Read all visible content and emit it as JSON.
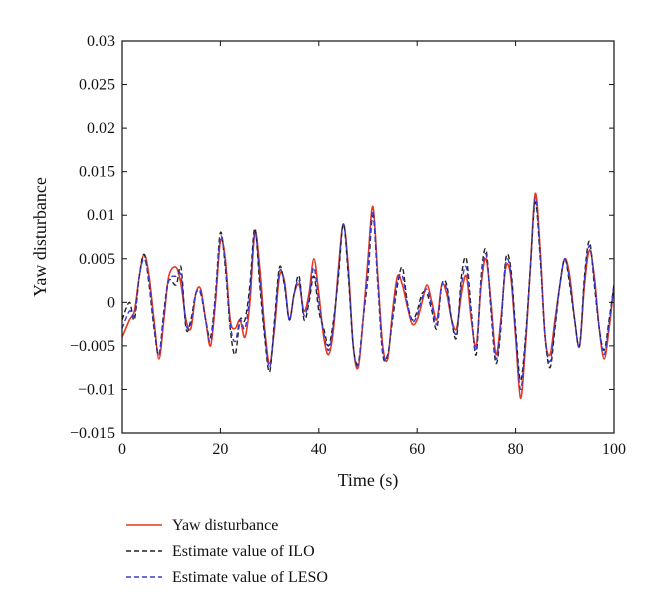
{
  "chart_data": {
    "type": "line",
    "title": "",
    "xlabel": "Time (s)",
    "ylabel": "Yaw disturbance",
    "xlim": [
      0,
      100
    ],
    "ylim": [
      -0.015,
      0.03
    ],
    "xticks": [
      0,
      20,
      40,
      60,
      80,
      100
    ],
    "xtick_labels": [
      "0",
      "20",
      "40",
      "60",
      "80",
      "100"
    ],
    "yticks": [
      -0.015,
      -0.01,
      -0.005,
      0,
      0.005,
      0.01,
      0.015,
      0.02,
      0.025,
      0.03
    ],
    "ytick_labels": [
      "−0.015",
      "−0.01",
      "−0.005",
      "0",
      "0.005",
      "0.01",
      "0.015",
      "0.02",
      "0.025",
      "0.03"
    ],
    "grid": false,
    "legend_position": "below",
    "series": [
      {
        "name": "Yaw disturbance",
        "color": "#e8391e",
        "dash": "solid",
        "x": [
          0,
          1.5,
          2.5,
          3.5,
          4.5,
          5.5,
          6.5,
          7.5,
          8.5,
          9.5,
          11,
          12,
          13,
          14,
          15,
          16,
          17,
          18,
          19,
          20,
          21,
          22,
          23,
          24,
          25,
          26,
          27,
          28,
          29,
          30,
          31,
          32,
          33,
          34,
          35,
          36,
          37,
          38,
          39,
          40,
          41,
          42,
          43,
          44,
          45,
          46,
          47,
          48,
          49,
          50,
          51,
          52,
          53,
          54,
          55,
          56,
          57,
          58,
          59,
          60,
          61,
          62,
          63,
          64,
          65,
          66,
          67,
          68,
          69,
          70,
          71,
          72,
          73,
          74,
          75,
          76,
          77,
          78,
          79,
          80,
          81,
          82,
          83,
          84,
          85,
          86,
          87,
          88,
          89,
          90,
          91,
          92,
          93,
          94,
          95,
          96,
          97,
          98,
          99,
          100
        ],
        "y": [
          -0.004,
          -0.002,
          -0.001,
          0.003,
          0.0055,
          0.003,
          -0.002,
          -0.0065,
          -0.002,
          0.003,
          0.004,
          0.002,
          -0.002,
          -0.003,
          0.001,
          0.0015,
          -0.002,
          -0.005,
          0.0,
          0.007,
          0.005,
          -0.002,
          -0.003,
          -0.002,
          -0.004,
          0.0,
          0.008,
          0.004,
          -0.003,
          -0.007,
          -0.003,
          0.003,
          0.0025,
          -0.002,
          0.001,
          0.002,
          -0.001,
          0.001,
          0.005,
          0.001,
          -0.004,
          -0.006,
          -0.003,
          0.004,
          0.009,
          0.004,
          -0.005,
          -0.0075,
          -0.002,
          0.005,
          0.011,
          0.003,
          -0.005,
          -0.0065,
          -0.001,
          0.003,
          0.002,
          -0.0005,
          -0.0025,
          -0.002,
          0.0,
          0.002,
          0.0,
          -0.002,
          0.002,
          0.001,
          -0.002,
          -0.003,
          0.001,
          0.003,
          -0.002,
          -0.005,
          0.002,
          0.005,
          0.0,
          -0.006,
          -0.002,
          0.004,
          0.003,
          -0.004,
          -0.011,
          -0.005,
          0.004,
          0.0125,
          0.006,
          -0.004,
          -0.006,
          -0.002,
          0.002,
          0.005,
          0.003,
          -0.002,
          -0.005,
          0.002,
          0.006,
          0.003,
          -0.003,
          -0.0065,
          -0.003,
          0.002
        ]
      },
      {
        "name": "Estimate value of ILO",
        "color": "#222222",
        "dash": "dashed",
        "x": [
          0,
          1.5,
          2.5,
          3.5,
          4.5,
          5.5,
          6.5,
          7.5,
          8.5,
          9.5,
          11,
          12,
          13,
          14,
          15,
          16,
          17,
          18,
          19,
          20,
          21,
          22,
          23,
          24,
          25,
          26,
          27,
          28,
          29,
          30,
          31,
          32,
          33,
          34,
          35,
          36,
          37,
          38,
          39,
          40,
          41,
          42,
          43,
          44,
          45,
          46,
          47,
          48,
          49,
          50,
          51,
          52,
          53,
          54,
          55,
          56,
          57,
          58,
          59,
          60,
          61,
          62,
          63,
          64,
          65,
          66,
          67,
          68,
          69,
          70,
          71,
          72,
          73,
          74,
          75,
          76,
          77,
          78,
          79,
          80,
          81,
          82,
          83,
          84,
          85,
          86,
          87,
          88,
          89,
          90,
          91,
          92,
          93,
          94,
          95,
          96,
          97,
          98,
          99,
          100
        ],
        "y": [
          -0.002,
          0.0,
          -0.002,
          0.003,
          0.0055,
          0.002,
          -0.003,
          -0.006,
          -0.001,
          0.0025,
          0.002,
          0.004,
          -0.003,
          -0.002,
          0.001,
          0.001,
          -0.002,
          -0.004,
          0.001,
          0.008,
          0.004,
          -0.003,
          -0.006,
          -0.002,
          -0.002,
          0.002,
          0.0085,
          0.002,
          -0.004,
          -0.008,
          -0.002,
          0.004,
          0.002,
          -0.002,
          0.001,
          0.003,
          -0.002,
          0.0,
          0.003,
          -0.001,
          -0.003,
          -0.005,
          -0.002,
          0.003,
          0.009,
          0.003,
          -0.005,
          -0.007,
          -0.002,
          0.003,
          0.01,
          0.002,
          -0.006,
          -0.006,
          -0.002,
          0.002,
          0.004,
          0.0,
          -0.002,
          -0.001,
          0.001,
          0.001,
          -0.001,
          -0.003,
          0.002,
          0.002,
          -0.002,
          -0.004,
          0.003,
          0.005,
          -0.001,
          -0.006,
          0.003,
          0.006,
          -0.001,
          -0.007,
          -0.003,
          0.005,
          0.004,
          -0.003,
          -0.009,
          -0.004,
          0.004,
          0.0115,
          0.005,
          -0.004,
          -0.0075,
          -0.003,
          0.002,
          0.005,
          0.002,
          -0.002,
          -0.005,
          0.003,
          0.007,
          0.002,
          -0.003,
          -0.0055,
          -0.002,
          0.002
        ]
      },
      {
        "name": "Estimate value of LESO",
        "color": "#3a3ad8",
        "dash": "dashed",
        "x": [
          0,
          1.5,
          2.5,
          3.5,
          4.5,
          5.5,
          6.5,
          7.5,
          8.5,
          9.5,
          11,
          12,
          13,
          14,
          15,
          16,
          17,
          18,
          19,
          20,
          21,
          22,
          23,
          24,
          25,
          26,
          27,
          28,
          29,
          30,
          31,
          32,
          33,
          34,
          35,
          36,
          37,
          38,
          39,
          40,
          41,
          42,
          43,
          44,
          45,
          46,
          47,
          48,
          49,
          50,
          51,
          52,
          53,
          54,
          55,
          56,
          57,
          58,
          59,
          60,
          61,
          62,
          63,
          64,
          65,
          66,
          67,
          68,
          69,
          70,
          71,
          72,
          73,
          74,
          75,
          76,
          77,
          78,
          79,
          80,
          81,
          82,
          83,
          84,
          85,
          86,
          87,
          88,
          89,
          90,
          91,
          92,
          93,
          94,
          95,
          96,
          97,
          98,
          99,
          100
        ],
        "y": [
          -0.003,
          -0.001,
          -0.0015,
          0.003,
          0.005,
          0.0025,
          -0.0025,
          -0.006,
          -0.0015,
          0.0025,
          0.003,
          0.003,
          -0.0025,
          -0.0025,
          0.001,
          0.0012,
          -0.002,
          -0.0045,
          0.0005,
          0.0075,
          0.0045,
          -0.0025,
          -0.0045,
          -0.002,
          -0.003,
          0.001,
          0.008,
          0.003,
          -0.0035,
          -0.0075,
          -0.0025,
          0.0035,
          0.0022,
          -0.002,
          0.001,
          0.0025,
          -0.0015,
          0.0005,
          0.004,
          0.0,
          -0.0035,
          -0.0055,
          -0.0025,
          0.0035,
          0.009,
          0.0035,
          -0.005,
          -0.0072,
          -0.002,
          0.004,
          0.0105,
          0.0025,
          -0.0055,
          -0.0062,
          -0.0015,
          0.0025,
          0.003,
          -0.0002,
          -0.0022,
          -0.0015,
          0.0005,
          0.0015,
          -0.0005,
          -0.0025,
          0.002,
          0.0015,
          -0.002,
          -0.0035,
          0.002,
          0.004,
          -0.0015,
          -0.0055,
          0.0025,
          0.0055,
          -0.0005,
          -0.0065,
          -0.0025,
          0.0045,
          0.0035,
          -0.0035,
          -0.01,
          -0.0045,
          0.004,
          0.012,
          0.0055,
          -0.004,
          -0.0068,
          -0.0025,
          0.002,
          0.005,
          0.0025,
          -0.002,
          -0.005,
          0.0025,
          0.0065,
          0.0025,
          -0.003,
          -0.006,
          -0.0025,
          0.002
        ]
      }
    ]
  }
}
